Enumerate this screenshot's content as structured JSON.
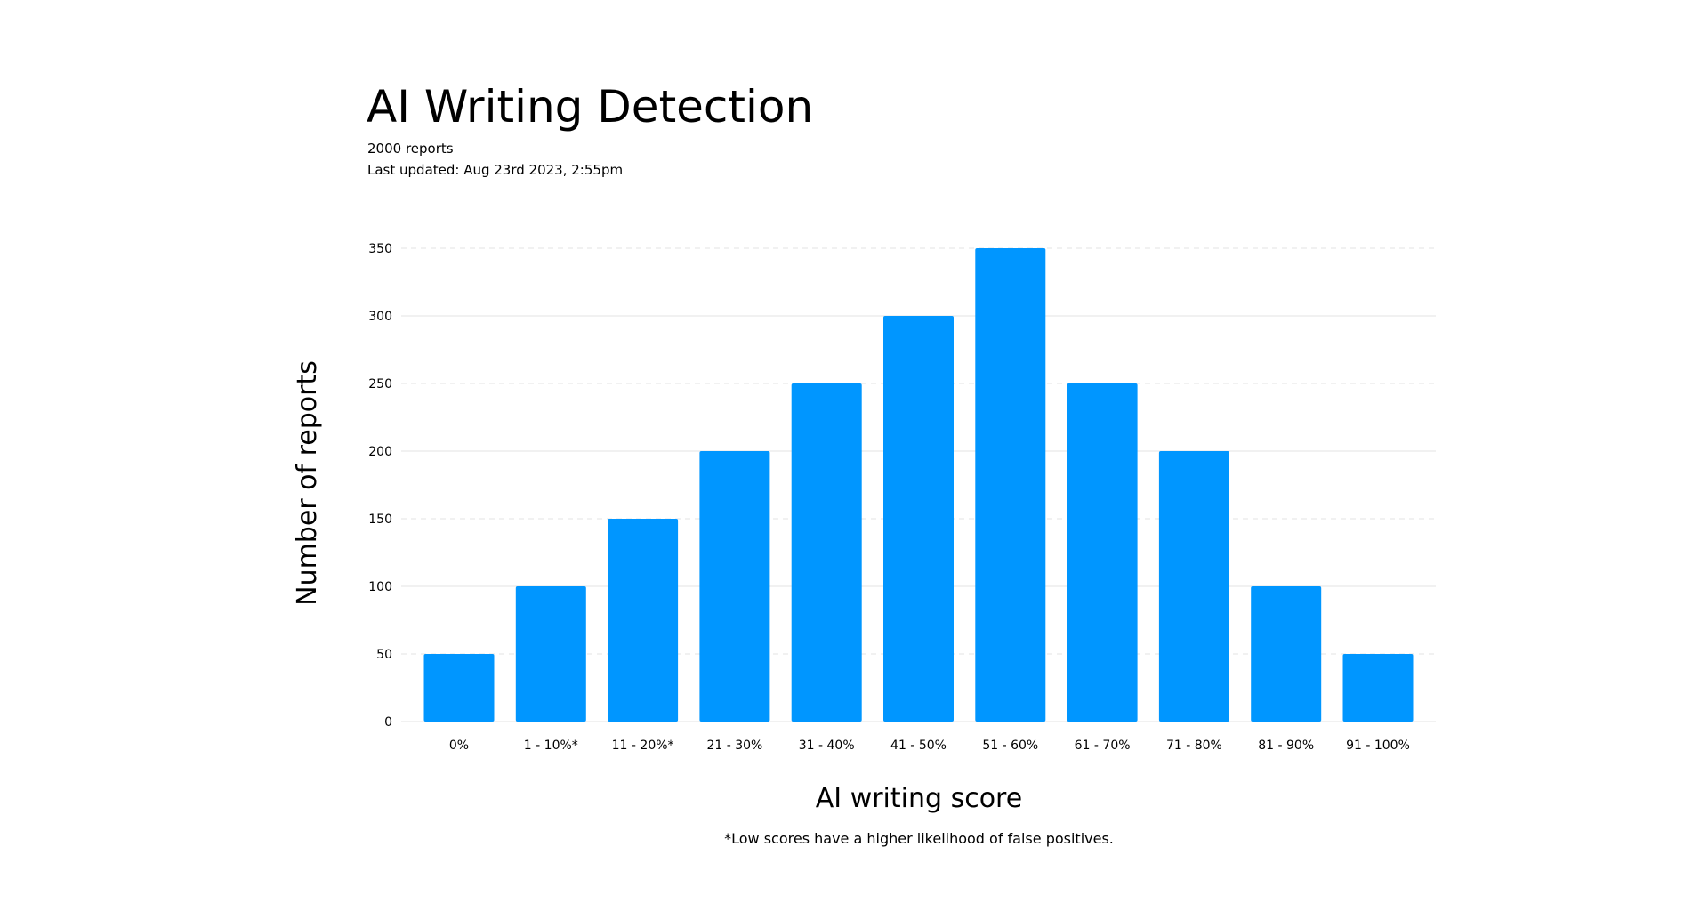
{
  "header": {
    "title": "AI Writing Detection",
    "report_count": "2000 reports",
    "last_updated": "Last updated: Aug 23rd 2023, 2:55pm"
  },
  "footnote": "*Low scores have a higher likelihood of false positives.",
  "colors": {
    "bar": "#0096FF",
    "grid": "#E3E3E3"
  },
  "chart_data": {
    "type": "bar",
    "categories": [
      "0%",
      "1 - 10%*",
      "11 - 20%*",
      "21 - 30%",
      "31 - 40%",
      "41 - 50%",
      "51 - 60%",
      "61 - 70%",
      "71 - 80%",
      "81 - 90%",
      "91 - 100%"
    ],
    "values": [
      50,
      100,
      150,
      200,
      250,
      300,
      350,
      250,
      200,
      100,
      50
    ],
    "xlabel": "AI writing score",
    "ylabel": "Number of reports",
    "ylim": [
      0,
      350
    ],
    "yticks": [
      0,
      50,
      100,
      150,
      200,
      250,
      300,
      350
    ],
    "grid": true
  }
}
